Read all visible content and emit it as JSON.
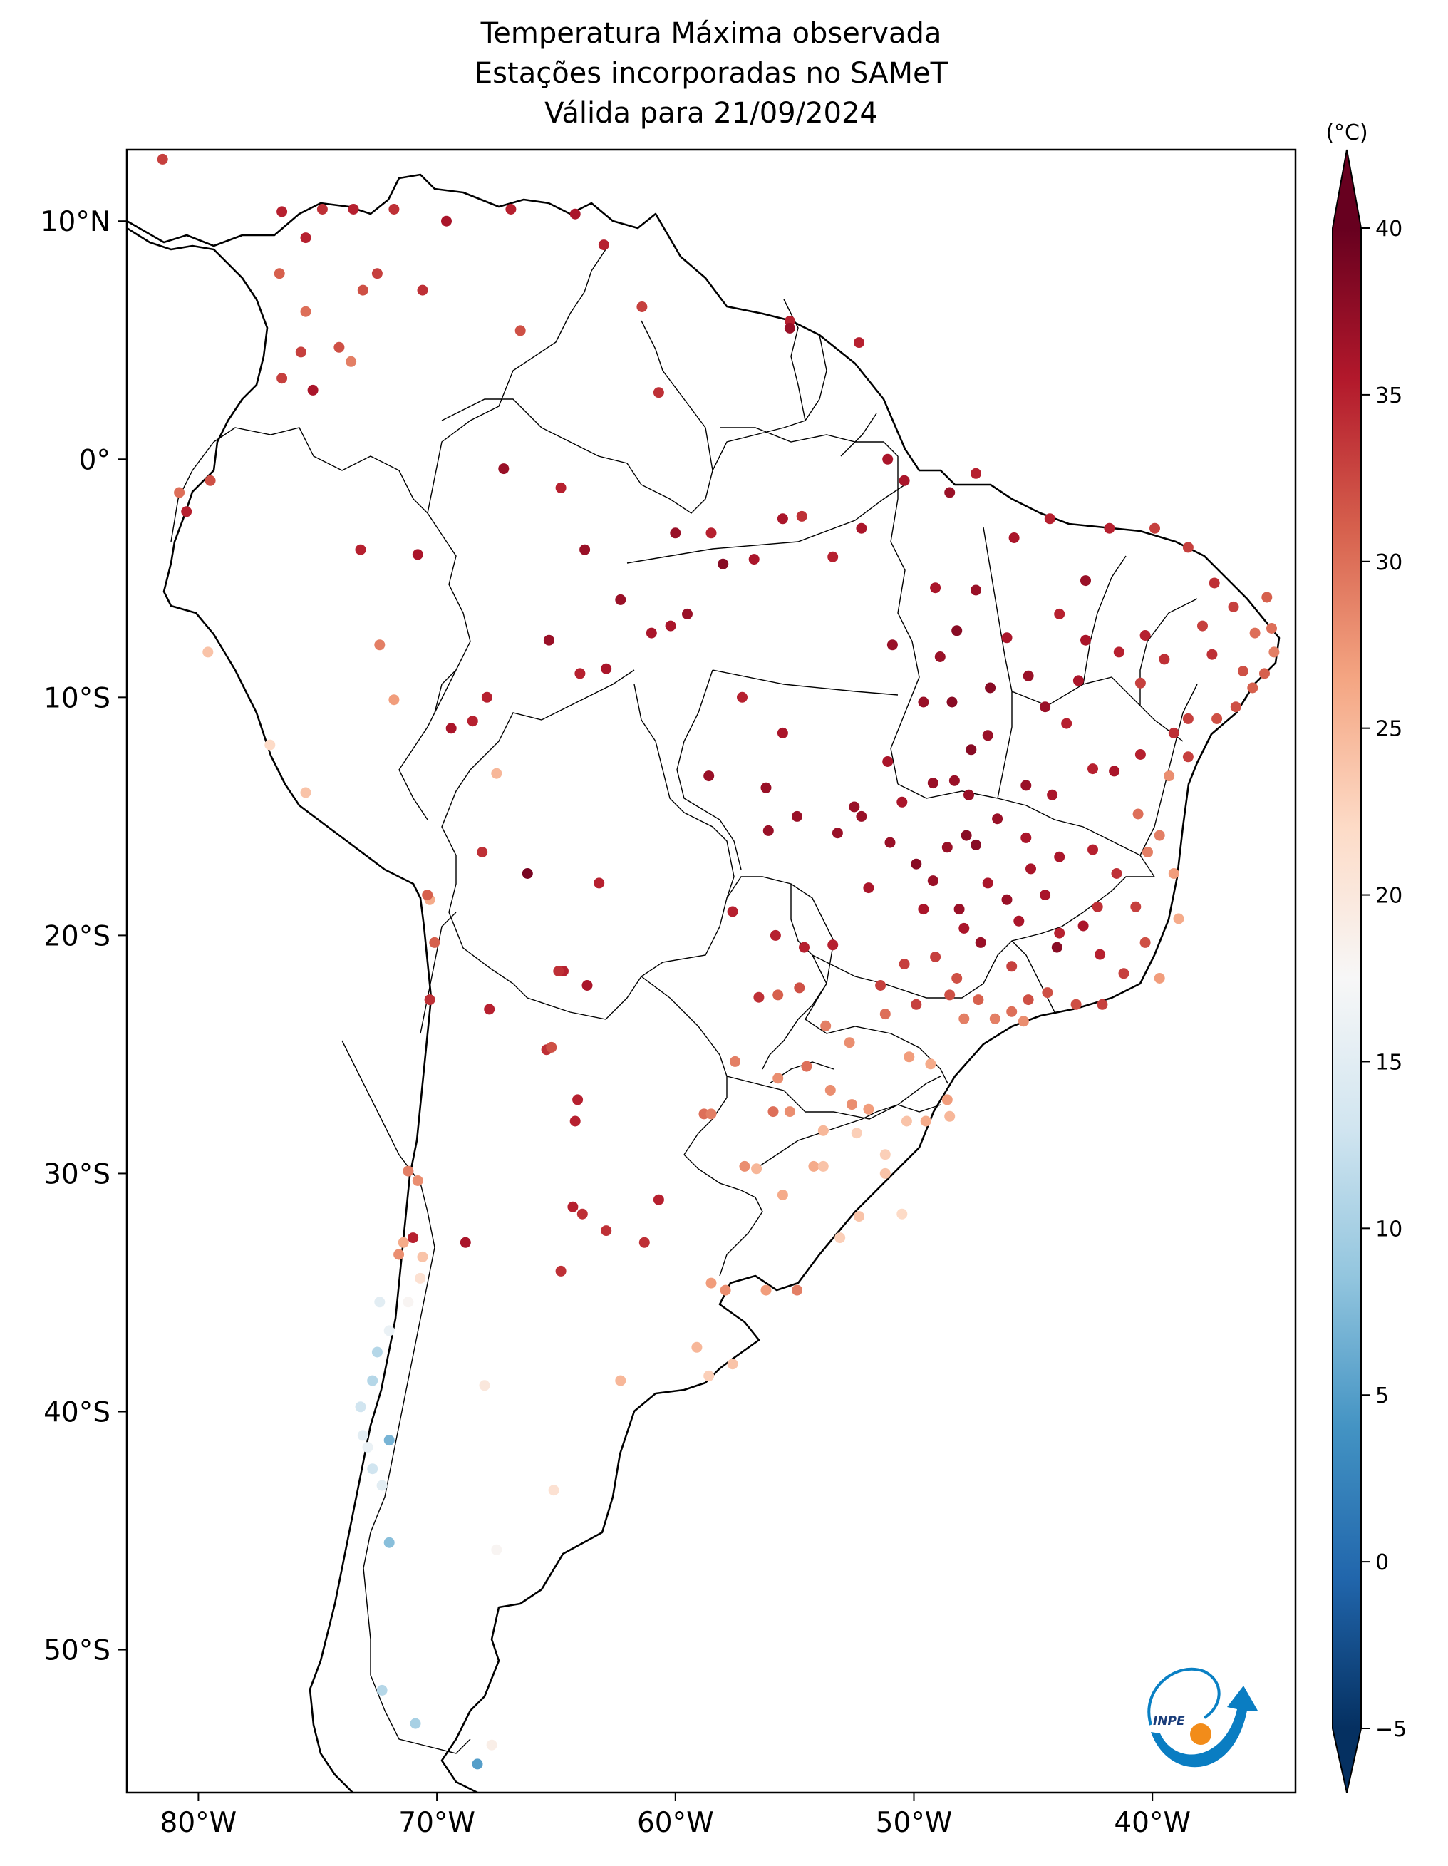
{
  "title": {
    "line1": "Temperatura Máxima observada",
    "line2": "Estações incorporadas no SAMeT",
    "line3": "Válida para 21/09/2024"
  },
  "map": {
    "lon_range": [
      -83,
      -34
    ],
    "lat_range": [
      -56,
      13
    ],
    "lon_ticks": [
      {
        "lon": -80,
        "label": "80°W"
      },
      {
        "lon": -70,
        "label": "70°W"
      },
      {
        "lon": -60,
        "label": "60°W"
      },
      {
        "lon": -50,
        "label": "50°W"
      },
      {
        "lon": -40,
        "label": "40°W"
      }
    ],
    "lat_ticks": [
      {
        "lat": 10,
        "label": "10°N"
      },
      {
        "lat": 0,
        "label": "0°"
      },
      {
        "lat": -10,
        "label": "10°S"
      },
      {
        "lat": -20,
        "label": "20°S"
      },
      {
        "lat": -30,
        "label": "30°S"
      },
      {
        "lat": -40,
        "label": "40°S"
      },
      {
        "lat": -50,
        "label": "50°S"
      }
    ]
  },
  "colorbar": {
    "unit": "(°C)",
    "min": -7,
    "max": 42,
    "ticks": [
      {
        "value": 40,
        "label": "40"
      },
      {
        "value": 35,
        "label": "35"
      },
      {
        "value": 30,
        "label": "30"
      },
      {
        "value": 25,
        "label": "25"
      },
      {
        "value": 20,
        "label": "20"
      },
      {
        "value": 15,
        "label": "15"
      },
      {
        "value": 10,
        "label": "10"
      },
      {
        "value": 5,
        "label": "5"
      },
      {
        "value": 0,
        "label": "0"
      },
      {
        "value": -5,
        "label": "−5"
      }
    ],
    "colors": [
      "#053061",
      "#2166ac",
      "#4393c3",
      "#92c5de",
      "#d1e5f0",
      "#f7f7f7",
      "#fddbc7",
      "#f4a582",
      "#d6604d",
      "#b2182b",
      "#67001f"
    ]
  },
  "logo": {
    "text": "INPE"
  },
  "stations": [
    [
      -81.5,
      12.6,
      33
    ],
    [
      -76.5,
      10.4,
      35
    ],
    [
      -74.8,
      10.5,
      34
    ],
    [
      -73.5,
      10.5,
      35
    ],
    [
      -75.5,
      9.3,
      35
    ],
    [
      -71.8,
      10.5,
      34
    ],
    [
      -66.9,
      10.5,
      35
    ],
    [
      -64.2,
      10.3,
      36
    ],
    [
      -63,
      9,
      35
    ],
    [
      -69.6,
      10,
      36
    ],
    [
      -72.5,
      7.8,
      33
    ],
    [
      -73.1,
      7.1,
      32
    ],
    [
      -76.6,
      7.8,
      31
    ],
    [
      -75.5,
      6.2,
      30
    ],
    [
      -74.1,
      4.7,
      32
    ],
    [
      -75.7,
      4.5,
      33
    ],
    [
      -76.5,
      3.4,
      33
    ],
    [
      -75.2,
      2.9,
      36
    ],
    [
      -73.6,
      4.1,
      29
    ],
    [
      -70.6,
      7.1,
      34
    ],
    [
      -66.5,
      5.4,
      32
    ],
    [
      -60.7,
      2.8,
      34
    ],
    [
      -61.4,
      6.4,
      33
    ],
    [
      -55.2,
      5.8,
      35
    ],
    [
      -55.2,
      5.5,
      37
    ],
    [
      -52.3,
      4.9,
      35
    ],
    [
      -51.1,
      0,
      36
    ],
    [
      -50.4,
      -0.9,
      36
    ],
    [
      -48.5,
      -1.4,
      37
    ],
    [
      -47.4,
      -0.6,
      35
    ],
    [
      -67.2,
      -0.4,
      37
    ],
    [
      -64.8,
      -1.2,
      35
    ],
    [
      -60.0,
      -3.1,
      37
    ],
    [
      -58.5,
      -3.1,
      35
    ],
    [
      -55.5,
      -2.5,
      36
    ],
    [
      -54.7,
      -2.4,
      34
    ],
    [
      -52.2,
      -2.9,
      36
    ],
    [
      -53.4,
      -4.1,
      35
    ],
    [
      -56.7,
      -4.2,
      36
    ],
    [
      -58,
      -4.4,
      38
    ],
    [
      -63.8,
      -3.8,
      37
    ],
    [
      -70.8,
      -4,
      36
    ],
    [
      -73.2,
      -3.8,
      35
    ],
    [
      -62.3,
      -5.9,
      37
    ],
    [
      -61,
      -7.3,
      36
    ],
    [
      -65.3,
      -7.6,
      37
    ],
    [
      -59.5,
      -6.5,
      37
    ],
    [
      -60.2,
      -7.0,
      36
    ],
    [
      -62.9,
      -8.8,
      36
    ],
    [
      -67.9,
      -10,
      35
    ],
    [
      -68.5,
      -11,
      35
    ],
    [
      -69.4,
      -11.3,
      36
    ],
    [
      -72.4,
      -7.8,
      29
    ],
    [
      -64,
      -9,
      35
    ],
    [
      -57.2,
      -10,
      35
    ],
    [
      -55.5,
      -11.5,
      36
    ],
    [
      -58.6,
      -13.3,
      37
    ],
    [
      -56.2,
      -13.8,
      37
    ],
    [
      -56.1,
      -15.6,
      37
    ],
    [
      -54.9,
      -15,
      37
    ],
    [
      -53.2,
      -15.7,
      37
    ],
    [
      -52.5,
      -14.6,
      37
    ],
    [
      -51.1,
      -12.7,
      36
    ],
    [
      -49.2,
      -13.6,
      37
    ],
    [
      -50.5,
      -14.4,
      36
    ],
    [
      -47.8,
      -15.8,
      38
    ],
    [
      -46.5,
      -15.1,
      37
    ],
    [
      -45.3,
      -13.7,
      37
    ],
    [
      -44.2,
      -14.1,
      36
    ],
    [
      -42.5,
      -13,
      35
    ],
    [
      -41.6,
      -13.1,
      36
    ],
    [
      -40.5,
      -12.4,
      35
    ],
    [
      -39.1,
      -11.5,
      34
    ],
    [
      -38.5,
      -12.5,
      33
    ],
    [
      -38.5,
      -10.9,
      33
    ],
    [
      -37.3,
      -10.9,
      32
    ],
    [
      -36.5,
      -10.4,
      32
    ],
    [
      -35.3,
      -9,
      31
    ],
    [
      -35.8,
      -9.6,
      31
    ],
    [
      -34.9,
      -8.1,
      29
    ],
    [
      -35,
      -7.1,
      30
    ],
    [
      -35.2,
      -5.8,
      31
    ],
    [
      -36.6,
      -6.2,
      33
    ],
    [
      -37.4,
      -5.2,
      34
    ],
    [
      -38.5,
      -3.7,
      33
    ],
    [
      -39.9,
      -2.9,
      33
    ],
    [
      -41.8,
      -2.9,
      35
    ],
    [
      -42.8,
      -5.1,
      37
    ],
    [
      -44.3,
      -2.5,
      35
    ],
    [
      -45.8,
      -3.3,
      36
    ],
    [
      -47.4,
      -5.5,
      37
    ],
    [
      -48.2,
      -7.2,
      38
    ],
    [
      -49.1,
      -5.4,
      36
    ],
    [
      -48.9,
      -8.3,
      37
    ],
    [
      -49.6,
      -10.2,
      37
    ],
    [
      -48.4,
      -10.2,
      38
    ],
    [
      -46.9,
      -11.6,
      37
    ],
    [
      -47.6,
      -12.2,
      38
    ],
    [
      -48.3,
      -13.5,
      37
    ],
    [
      -46.1,
      -7.5,
      36
    ],
    [
      -43.9,
      -6.5,
      35
    ],
    [
      -42.8,
      -7.6,
      36
    ],
    [
      -41.4,
      -8.1,
      35
    ],
    [
      -40.5,
      -9.4,
      33
    ],
    [
      -39.5,
      -8.4,
      34
    ],
    [
      -37.9,
      -7.0,
      33
    ],
    [
      -37.5,
      -8.2,
      34
    ],
    [
      -40.3,
      -7.4,
      35
    ],
    [
      -45.2,
      -9.1,
      37
    ],
    [
      -44.5,
      -10.4,
      37
    ],
    [
      -43.1,
      -9.3,
      36
    ],
    [
      -43.6,
      -11.1,
      35
    ],
    [
      -46.8,
      -9.6,
      38
    ],
    [
      -50.9,
      -7.8,
      37
    ],
    [
      -49.2,
      -17.7,
      37
    ],
    [
      -48.6,
      -16.3,
      37
    ],
    [
      -47.4,
      -16.2,
      38
    ],
    [
      -46.9,
      -17.8,
      36
    ],
    [
      -45.1,
      -17.2,
      36
    ],
    [
      -43.9,
      -16.7,
      36
    ],
    [
      -42.5,
      -16.4,
      35
    ],
    [
      -41.5,
      -17.4,
      34
    ],
    [
      -40.7,
      -18.8,
      33
    ],
    [
      -40.3,
      -20.3,
      32
    ],
    [
      -41.2,
      -21.6,
      33
    ],
    [
      -42.2,
      -20.8,
      35
    ],
    [
      -43.9,
      -19.9,
      35
    ],
    [
      -45.6,
      -19.4,
      36
    ],
    [
      -47.9,
      -19.7,
      36
    ],
    [
      -49.6,
      -18.9,
      36
    ],
    [
      -51.9,
      -18,
      36
    ],
    [
      -53.4,
      -20.4,
      35
    ],
    [
      -54.6,
      -20.5,
      35
    ],
    [
      -55.8,
      -20,
      35
    ],
    [
      -57.6,
      -19,
      35
    ],
    [
      -56.5,
      -22.6,
      34
    ],
    [
      -55.7,
      -22.5,
      31
    ],
    [
      -54.8,
      -22.2,
      32
    ],
    [
      -53.7,
      -23.8,
      29
    ],
    [
      -52.7,
      -24.5,
      28
    ],
    [
      -51.4,
      -22.1,
      33
    ],
    [
      -50.4,
      -21.2,
      33
    ],
    [
      -49.1,
      -20.9,
      33
    ],
    [
      -48.2,
      -21.8,
      32
    ],
    [
      -47.3,
      -22.7,
      31
    ],
    [
      -46.6,
      -23.5,
      29
    ],
    [
      -45.9,
      -23.2,
      30
    ],
    [
      -45.2,
      -22.7,
      32
    ],
    [
      -44.4,
      -22.4,
      32
    ],
    [
      -43.2,
      -22.9,
      32
    ],
    [
      -42.1,
      -22.9,
      33
    ],
    [
      -45.4,
      -23.6,
      28
    ],
    [
      -47.9,
      -23.5,
      29
    ],
    [
      -48.5,
      -22.5,
      32
    ],
    [
      -49.9,
      -22.9,
      33
    ],
    [
      -51.2,
      -23.3,
      30
    ],
    [
      -50.2,
      -25.1,
      27
    ],
    [
      -49.3,
      -25.4,
      26
    ],
    [
      -48.6,
      -26.9,
      27
    ],
    [
      -48.5,
      -27.6,
      25
    ],
    [
      -49.5,
      -27.8,
      26
    ],
    [
      -50.3,
      -27.8,
      24
    ],
    [
      -51.9,
      -27.3,
      27
    ],
    [
      -52.6,
      -27.1,
      28
    ],
    [
      -53.5,
      -26.5,
      28
    ],
    [
      -54.5,
      -25.5,
      30
    ],
    [
      -55.7,
      -26,
      28
    ],
    [
      -55.2,
      -27.4,
      28
    ],
    [
      -53.8,
      -28.2,
      25
    ],
    [
      -54.2,
      -29.7,
      26
    ],
    [
      -53.8,
      -29.7,
      24
    ],
    [
      -52.4,
      -28.3,
      23
    ],
    [
      -51.2,
      -29.2,
      23
    ],
    [
      -51.2,
      -30,
      24
    ],
    [
      -50.5,
      -31.7,
      22
    ],
    [
      -52.3,
      -31.8,
      24
    ],
    [
      -53.1,
      -32.7,
      23
    ],
    [
      -55.5,
      -30.9,
      26
    ],
    [
      -56.6,
      -29.8,
      25
    ],
    [
      -57.1,
      -29.7,
      28
    ],
    [
      -58.8,
      -27.5,
      30
    ],
    [
      -55.9,
      -27.4,
      30
    ],
    [
      -57.5,
      -25.3,
      29
    ],
    [
      -58.5,
      -27.5,
      29
    ],
    [
      -60.7,
      -31.1,
      35
    ],
    [
      -61.3,
      -32.9,
      34
    ],
    [
      -64.3,
      -31.4,
      35
    ],
    [
      -63.9,
      -31.7,
      34
    ],
    [
      -62.9,
      -32.4,
      34
    ],
    [
      -64.2,
      -27.8,
      35
    ],
    [
      -64.1,
      -26.9,
      35
    ],
    [
      -65.4,
      -24.8,
      34
    ],
    [
      -65.2,
      -24.7,
      32
    ],
    [
      -63.7,
      -22.1,
      36
    ],
    [
      -64.7,
      -21.5,
      35
    ],
    [
      -68.1,
      -16.5,
      34
    ],
    [
      -66.2,
      -17.4,
      39
    ],
    [
      -63.2,
      -17.8,
      35
    ],
    [
      -67.8,
      -23.1,
      35
    ],
    [
      -70.3,
      -22.7,
      34
    ],
    [
      -70.3,
      -18.5,
      26
    ],
    [
      -70.4,
      -18.3,
      31
    ],
    [
      -70.1,
      -20.3,
      31
    ],
    [
      -70.8,
      -30.3,
      28
    ],
    [
      -71.2,
      -29.9,
      29
    ],
    [
      -71.6,
      -33.4,
      28
    ],
    [
      -71.4,
      -32.9,
      26
    ],
    [
      -70.6,
      -33.5,
      24
    ],
    [
      -70.7,
      -34.4,
      21
    ],
    [
      -71.2,
      -35.4,
      18
    ],
    [
      -72.4,
      -35.4,
      15
    ],
    [
      -72,
      -36.6,
      16
    ],
    [
      -72.5,
      -37.5,
      11
    ],
    [
      -72.7,
      -38.7,
      11
    ],
    [
      -73.2,
      -39.8,
      13
    ],
    [
      -73.1,
      -41,
      15
    ],
    [
      -72.9,
      -41.5,
      16
    ],
    [
      -72.7,
      -42.4,
      13
    ],
    [
      -72.3,
      -43.1,
      15
    ],
    [
      -72.0,
      -45.5,
      8
    ],
    [
      -72.0,
      -41.2,
      7
    ],
    [
      -71.0,
      -32.7,
      35
    ],
    [
      -68.8,
      -32.9,
      36
    ],
    [
      -68,
      -38.9,
      20
    ],
    [
      -65.1,
      -43.3,
      21
    ],
    [
      -67.5,
      -45.8,
      18
    ],
    [
      -72.3,
      -51.7,
      11
    ],
    [
      -70.9,
      -53.1,
      10
    ],
    [
      -68.3,
      -54.8,
      5
    ],
    [
      -67.7,
      -54,
      19
    ],
    [
      -58.5,
      -34.6,
      27
    ],
    [
      -57.9,
      -34.9,
      28
    ],
    [
      -56.2,
      -34.9,
      27
    ],
    [
      -54.9,
      -34.9,
      29
    ],
    [
      -64.8,
      -34.1,
      34
    ],
    [
      -59.1,
      -37.3,
      25
    ],
    [
      -57.6,
      -38.0,
      24
    ],
    [
      -62.3,
      -38.7,
      25
    ],
    [
      -58.6,
      -38.5,
      23
    ],
    [
      -75.5,
      -14,
      24
    ],
    [
      -77,
      -12,
      22
    ],
    [
      -79.5,
      -0.9,
      32
    ],
    [
      -80.5,
      -2.2,
      35
    ],
    [
      -79.6,
      -8.1,
      24
    ],
    [
      -80.8,
      -1.4,
      30
    ],
    [
      -64.9,
      -21.5,
      34
    ],
    [
      -67.5,
      -13.2,
      25
    ],
    [
      -71.8,
      -10.1,
      27
    ],
    [
      -44,
      -20.5,
      38
    ],
    [
      -42.9,
      -19.6,
      36
    ],
    [
      -45.9,
      -21.3,
      33
    ],
    [
      -40.6,
      -14.9,
      30
    ],
    [
      -39.7,
      -15.8,
      29
    ],
    [
      -39.1,
      -17.4,
      27
    ],
    [
      -39.3,
      -13.3,
      28
    ],
    [
      -40.2,
      -16.5,
      29
    ],
    [
      -38.9,
      -19.3,
      26
    ],
    [
      -35.7,
      -7.3,
      30
    ],
    [
      -36.2,
      -8.9,
      32
    ],
    [
      -39.7,
      -21.8,
      27
    ],
    [
      -47.2,
      -20.3,
      37
    ],
    [
      -48.1,
      -18.9,
      37
    ],
    [
      -46.1,
      -18.5,
      37
    ],
    [
      -44.5,
      -18.3,
      36
    ],
    [
      -49.9,
      -17.0,
      38
    ],
    [
      -51.0,
      -16.1,
      37
    ],
    [
      -52.2,
      -15.0,
      37
    ],
    [
      -47.7,
      -14.1,
      37
    ],
    [
      -45.3,
      -15.9,
      36
    ],
    [
      -42.3,
      -18.8,
      34
    ]
  ]
}
